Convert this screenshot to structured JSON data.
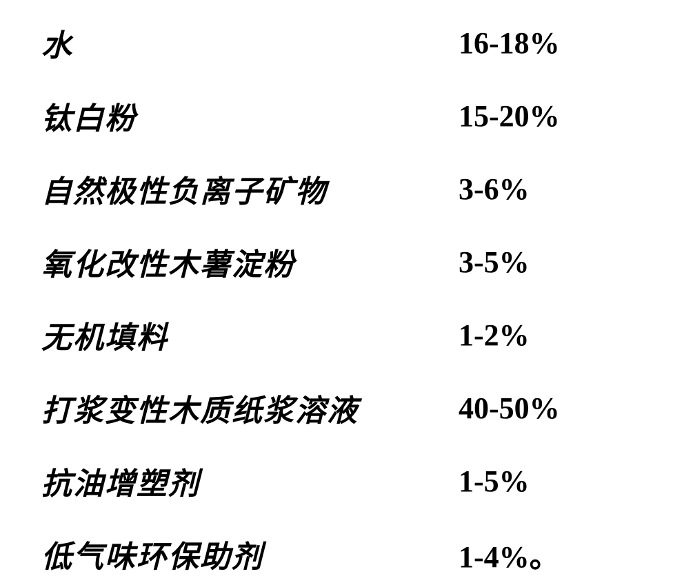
{
  "rows": [
    {
      "label": "水",
      "value": "16-18%"
    },
    {
      "label": "钛白粉",
      "value": "15-20%"
    },
    {
      "label": "自然极性负离子矿物",
      "value": "3-6%"
    },
    {
      "label": "氧化改性木薯淀粉",
      "value": "3-5%"
    },
    {
      "label": "无机填料",
      "value": "1-2%"
    },
    {
      "label": "打浆变性木质纸浆溶液",
      "value": "40-50%"
    },
    {
      "label": "抗油增塑剂",
      "value": "1-5%"
    },
    {
      "label": "低气味环保助剂",
      "value": "1-4%。"
    }
  ],
  "colors": {
    "background": "#ffffff",
    "text": "#000000"
  },
  "typography": {
    "label_fontsize": 44,
    "value_fontsize": 44,
    "label_fontweight": "bold",
    "value_fontweight": "bold",
    "label_fontstyle": "italic"
  },
  "layout": {
    "row_spacing": 42,
    "value_col_width": 280
  }
}
